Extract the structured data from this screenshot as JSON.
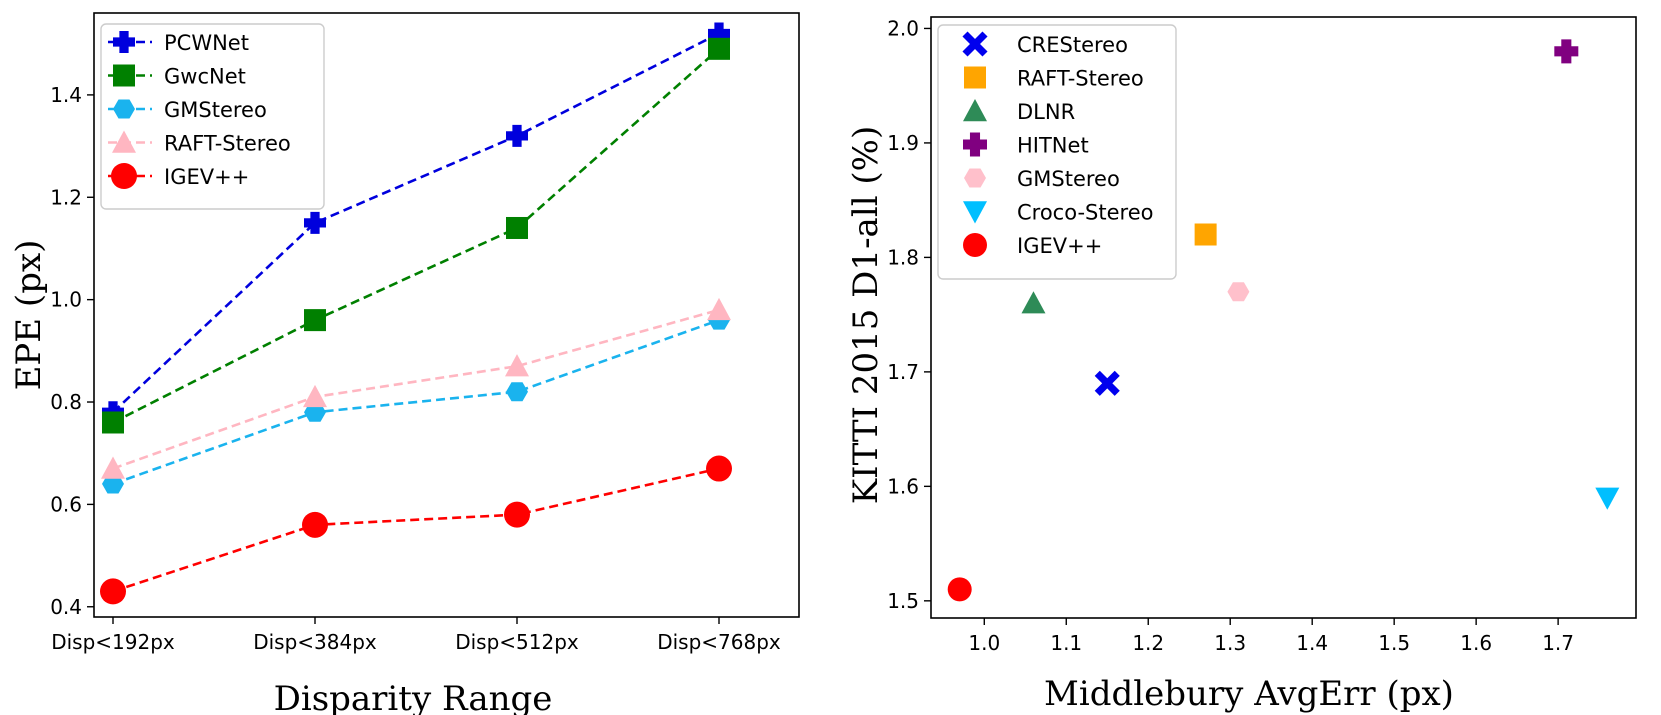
{
  "chart_data": [
    {
      "type": "line",
      "title": "",
      "xlabel": "Disparity Range",
      "ylabel": "EPE (px)",
      "categories": [
        "Disp<192px",
        "Disp<384px",
        "Disp<512px",
        "Disp<768px"
      ],
      "ylim": [
        0.38,
        1.56
      ],
      "yticks": [
        0.4,
        0.6,
        0.8,
        1.0,
        1.2,
        1.4
      ],
      "ytick_labels": [
        "0.4",
        "0.6",
        "0.8",
        "1.0",
        "1.2",
        "1.4"
      ],
      "legend": "top-left",
      "grid": false,
      "series": [
        {
          "name": "PCWNet",
          "color": "#0000dd",
          "marker": "plus",
          "values": [
            0.78,
            1.15,
            1.32,
            1.52
          ]
        },
        {
          "name": "GwcNet",
          "color": "#008000",
          "marker": "square",
          "values": [
            0.76,
            0.96,
            1.14,
            1.49
          ]
        },
        {
          "name": "GMStereo",
          "color": "#1ab3ee",
          "marker": "hexagon",
          "values": [
            0.64,
            0.78,
            0.82,
            0.96
          ]
        },
        {
          "name": "RAFT-Stereo",
          "color": "#ffb6c1",
          "marker": "triangle",
          "values": [
            0.67,
            0.81,
            0.87,
            0.98
          ]
        },
        {
          "name": "IGEV++",
          "color": "#ff0000",
          "marker": "circle",
          "values": [
            0.43,
            0.56,
            0.58,
            0.67
          ]
        }
      ]
    },
    {
      "type": "scatter",
      "title": "",
      "xlabel": "Middlebury AvgErr (px)",
      "ylabel": "KITTI 2015 D1-all (%)",
      "xlim": [
        0.935,
        1.795
      ],
      "ylim": [
        1.485,
        2.01
      ],
      "xticks": [
        1.0,
        1.1,
        1.2,
        1.3,
        1.4,
        1.5,
        1.6,
        1.7
      ],
      "xtick_labels": [
        "1.0",
        "1.1",
        "1.2",
        "1.3",
        "1.4",
        "1.5",
        "1.6",
        "1.7"
      ],
      "yticks": [
        1.5,
        1.6,
        1.7,
        1.8,
        1.9,
        2.0
      ],
      "ytick_labels": [
        "1.5",
        "1.6",
        "1.7",
        "1.8",
        "1.9",
        "2.0"
      ],
      "legend": "top-left",
      "grid": false,
      "points": [
        {
          "name": "CREStereo",
          "color": "#0000ee",
          "marker": "x",
          "x": 1.15,
          "y": 1.69
        },
        {
          "name": "RAFT-Stereo",
          "color": "#ffa500",
          "marker": "square",
          "x": 1.27,
          "y": 1.82
        },
        {
          "name": "DLNR",
          "color": "#2e8b57",
          "marker": "triangle",
          "x": 1.06,
          "y": 1.76
        },
        {
          "name": "HITNet",
          "color": "#800080",
          "marker": "plus",
          "x": 1.71,
          "y": 1.98
        },
        {
          "name": "GMStereo",
          "color": "#ffc0cb",
          "marker": "hexagon",
          "x": 1.31,
          "y": 1.77
        },
        {
          "name": "Croco-Stereo",
          "color": "#00bfff",
          "marker": "triangle-down",
          "x": 1.76,
          "y": 1.59
        },
        {
          "name": "IGEV++",
          "color": "#ff0000",
          "marker": "circle",
          "x": 0.97,
          "y": 1.51
        }
      ]
    }
  ]
}
